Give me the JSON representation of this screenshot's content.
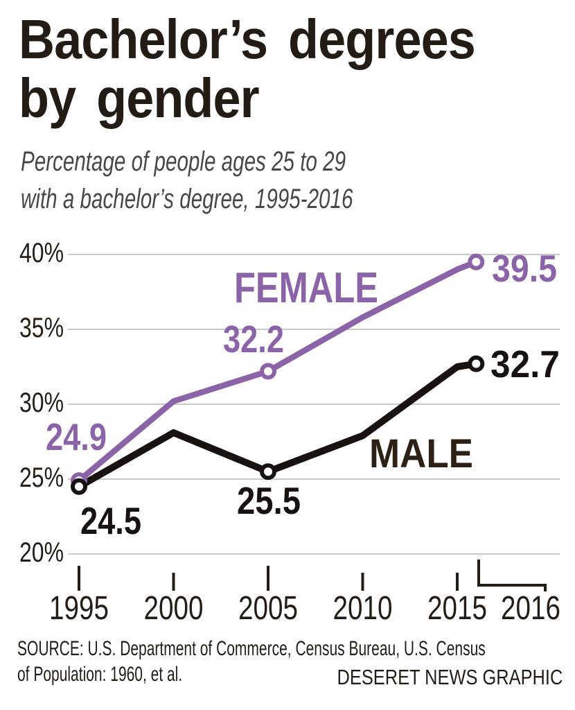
{
  "header": {
    "title_lines": [
      "Bachelor’s degrees",
      "by gender"
    ],
    "subtitle_lines": [
      "Percentage of people ages 25 to 29",
      "with a bachelor’s degree, 1995-2016"
    ]
  },
  "footer": {
    "source_lines": [
      "SOURCE: U.S. Department of Commerce, Census Bureau, U.S. Census",
      "of Population: 1960, et al."
    ],
    "credit": "DESERET NEWS GRAPHIC"
  },
  "chart_data": {
    "type": "line",
    "title": "Bachelor's degrees by gender",
    "subtitle": "Percentage of people ages 25 to 29 with a bachelor's degree, 1995-2016",
    "x": [
      1995,
      2000,
      2005,
      2010,
      2015,
      2016
    ],
    "x_tick_years": [
      1995,
      2000,
      2005,
      2010,
      2015,
      2016
    ],
    "y_axis": {
      "unit": "%",
      "range": [
        20,
        40
      ],
      "ticks": [
        {
          "label": "40%",
          "value": 40
        },
        {
          "label": "35%",
          "value": 35
        },
        {
          "label": "30%",
          "value": 30
        },
        {
          "label": "25%",
          "value": 25
        },
        {
          "label": "20%",
          "value": 20
        }
      ]
    },
    "grid": true,
    "legend": "inline-labels",
    "colors": {
      "grid": "#c9c9c9",
      "ink": "#241d16"
    },
    "series": [
      {
        "name": "FEMALE",
        "color": "#8b63a8",
        "values": [
          24.9,
          30.2,
          32.2,
          35.8,
          39.0,
          39.5
        ],
        "labeled_points": [
          {
            "year": 1995,
            "value": 24.9,
            "label": "24.9"
          },
          {
            "year": 2005,
            "value": 32.2,
            "label": "32.2"
          },
          {
            "year": 2016,
            "value": 39.5,
            "label": "39.5"
          }
        ]
      },
      {
        "name": "MALE",
        "color": "#17120f",
        "label_color": "#2d2115",
        "values": [
          24.5,
          28.1,
          25.5,
          27.9,
          32.5,
          32.7
        ],
        "labeled_points": [
          {
            "year": 1995,
            "value": 24.5,
            "label": "24.5"
          },
          {
            "year": 2005,
            "value": 25.5,
            "label": "25.5"
          },
          {
            "year": 2016,
            "value": 32.7,
            "label": "32.7"
          }
        ]
      }
    ]
  }
}
